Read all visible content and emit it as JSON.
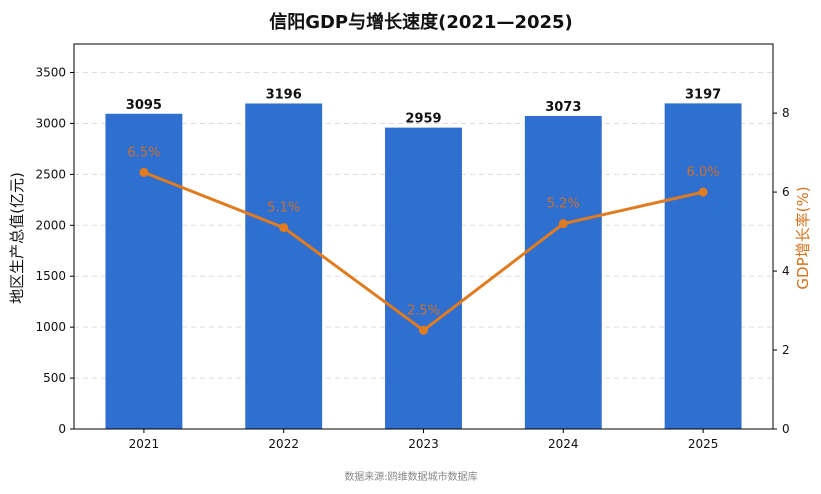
{
  "chart_data": {
    "type": "bar",
    "title": "信阳GDP与增长速度(2021—2025)",
    "categories": [
      "2021",
      "2022",
      "2023",
      "2024",
      "2025"
    ],
    "series": [
      {
        "name": "地区生产总值(亿元)",
        "kind": "bar",
        "axis": "left",
        "color": "#2f6fd0",
        "values": [
          3095,
          3196,
          2959,
          3073,
          3197
        ],
        "labels": [
          "3095",
          "3196",
          "2959",
          "3073",
          "3197"
        ]
      },
      {
        "name": "GDP增长率(%)",
        "kind": "line",
        "axis": "right",
        "color": "#e07b1f",
        "values": [
          6.5,
          5.1,
          2.5,
          5.2,
          6.0
        ],
        "labels": [
          "6.5%",
          "5.1%",
          "2.5%",
          "5.2%",
          "6.0%"
        ]
      }
    ],
    "ylabel_left": "地区生产总值(亿元)",
    "ylabel_right": "GDP增长率(%)",
    "ylim_left": [
      0,
      3780
    ],
    "yticks_left": [
      0,
      500,
      1000,
      1500,
      2000,
      2500,
      3000,
      3500
    ],
    "ylim_right": [
      0,
      9.75
    ],
    "yticks_right": [
      0,
      2,
      4,
      6,
      8
    ],
    "grid": "horizontal dashed",
    "source": "数据来源:鸥维数据城市数据库"
  }
}
